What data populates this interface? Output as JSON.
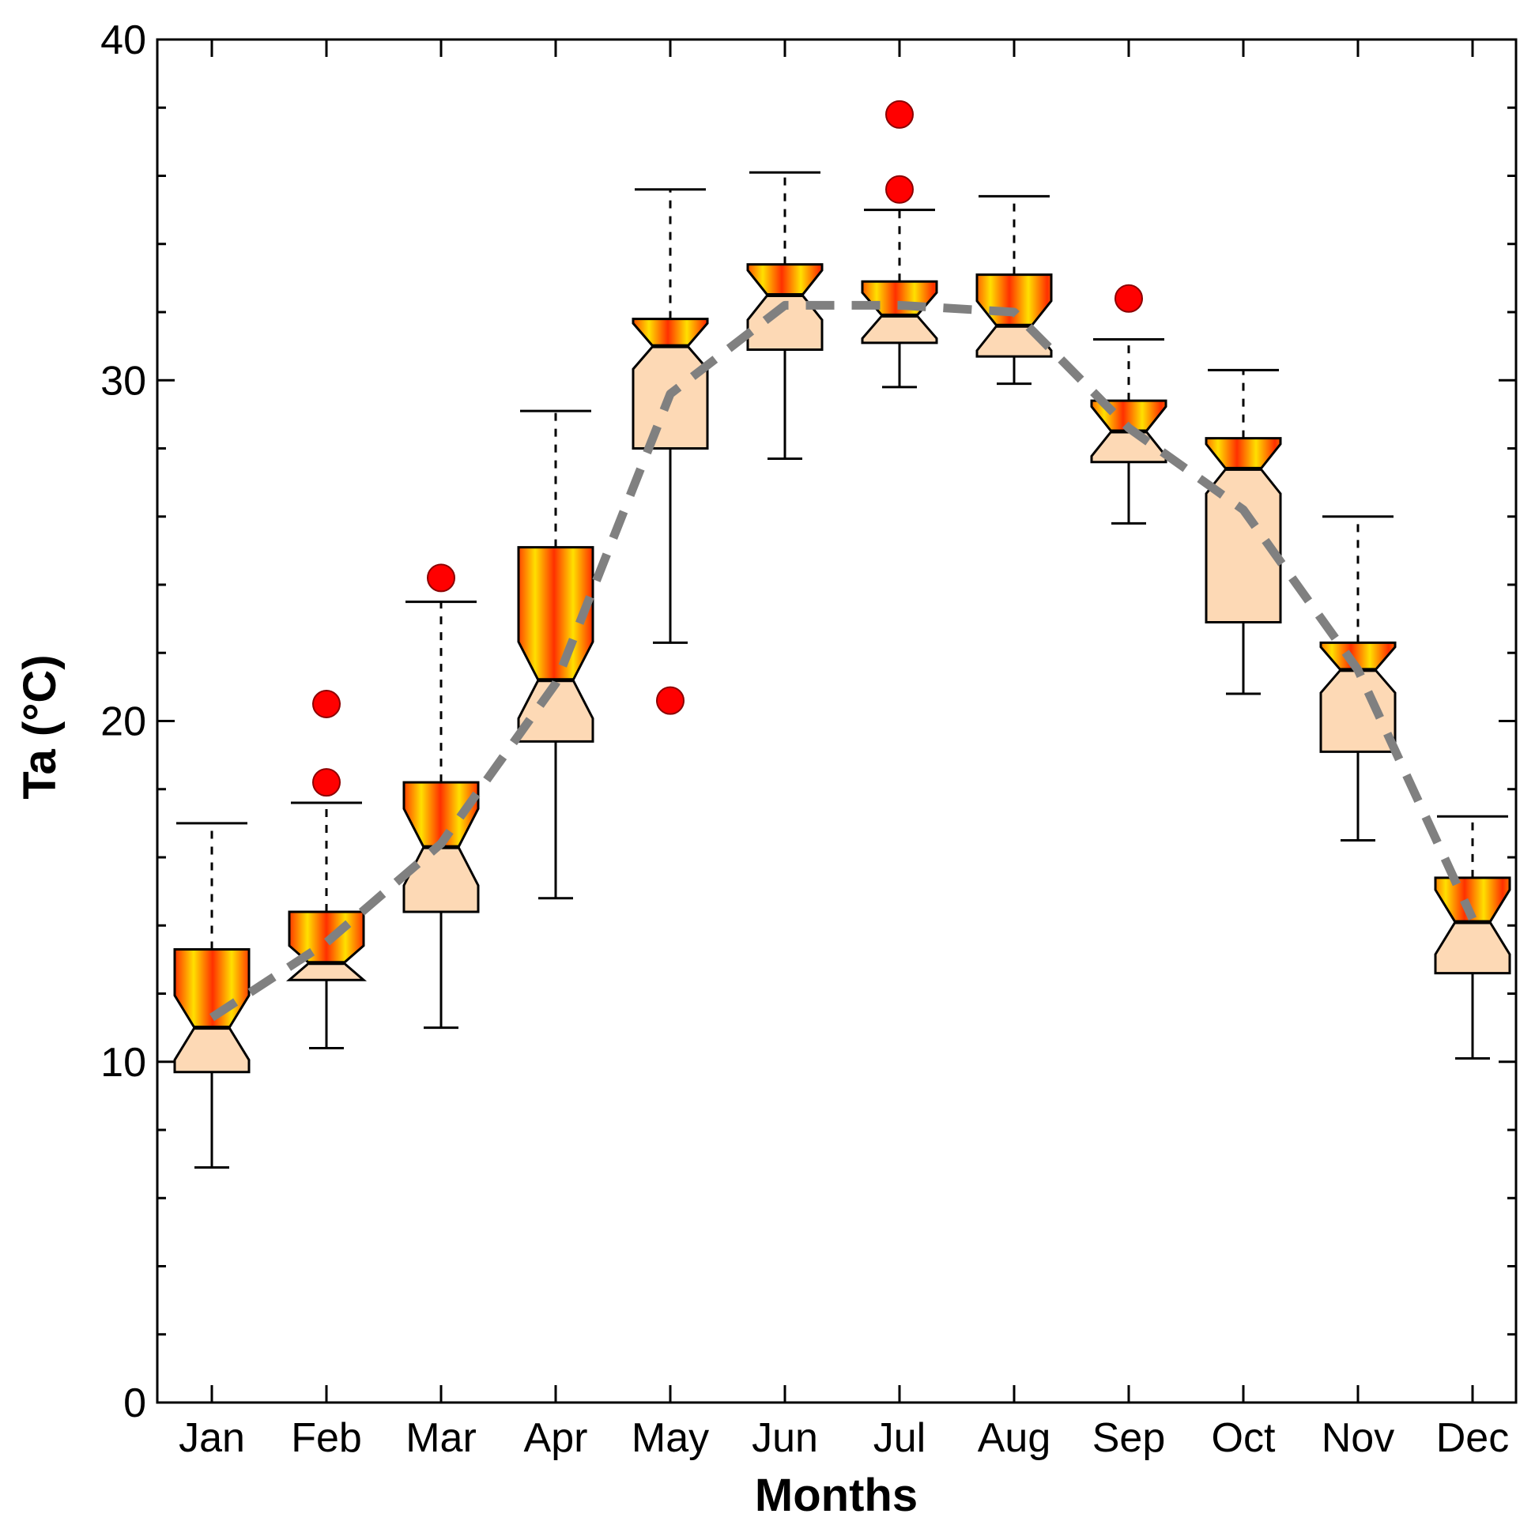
{
  "chart_data": {
    "type": "boxplot",
    "title": "",
    "xlabel": "Months",
    "ylabel": "Ta (°C)",
    "ylim": [
      0,
      40
    ],
    "yticks": [
      0,
      10,
      20,
      30,
      40
    ],
    "categories": [
      "Jan",
      "Feb",
      "Mar",
      "Apr",
      "May",
      "Jun",
      "Jul",
      "Aug",
      "Sep",
      "Oct",
      "Nov",
      "Dec"
    ],
    "boxes": [
      {
        "month": "Jan",
        "whisker_low": 6.9,
        "q1": 9.7,
        "median": 11.0,
        "q3": 13.3,
        "whisker_high": 17.0,
        "outliers": []
      },
      {
        "month": "Feb",
        "whisker_low": 10.4,
        "q1": 12.4,
        "median": 12.9,
        "q3": 14.4,
        "whisker_high": 17.6,
        "outliers": [
          20.5,
          18.2
        ]
      },
      {
        "month": "Mar",
        "whisker_low": 11.0,
        "q1": 14.4,
        "median": 16.3,
        "q3": 18.2,
        "whisker_high": 23.5,
        "outliers": [
          24.2
        ]
      },
      {
        "month": "Apr",
        "whisker_low": 14.8,
        "q1": 19.4,
        "median": 21.2,
        "q3": 25.1,
        "whisker_high": 29.1,
        "outliers": []
      },
      {
        "month": "May",
        "whisker_low": 22.3,
        "q1": 28.0,
        "median": 31.0,
        "q3": 31.8,
        "whisker_high": 35.6,
        "outliers": [
          20.6
        ]
      },
      {
        "month": "Jun",
        "whisker_low": 27.7,
        "q1": 30.9,
        "median": 32.5,
        "q3": 33.4,
        "whisker_high": 36.1,
        "outliers": []
      },
      {
        "month": "Jul",
        "whisker_low": 29.8,
        "q1": 31.1,
        "median": 31.9,
        "q3": 32.9,
        "whisker_high": 35.0,
        "outliers": [
          37.8,
          35.6
        ]
      },
      {
        "month": "Aug",
        "whisker_low": 29.9,
        "q1": 30.7,
        "median": 31.6,
        "q3": 33.1,
        "whisker_high": 35.4,
        "outliers": []
      },
      {
        "month": "Sep",
        "whisker_low": 25.8,
        "q1": 27.6,
        "median": 28.5,
        "q3": 29.4,
        "whisker_high": 31.2,
        "outliers": [
          32.4
        ]
      },
      {
        "month": "Oct",
        "whisker_low": 20.8,
        "q1": 22.9,
        "median": 27.4,
        "q3": 28.3,
        "whisker_high": 30.3,
        "outliers": []
      },
      {
        "month": "Nov",
        "whisker_low": 16.5,
        "q1": 19.1,
        "median": 21.5,
        "q3": 22.3,
        "whisker_high": 26.0,
        "outliers": []
      },
      {
        "month": "Dec",
        "whisker_low": 10.1,
        "q1": 12.6,
        "median": 14.1,
        "q3": 15.4,
        "whisker_high": 17.2,
        "outliers": []
      }
    ],
    "mean_line": {
      "name": "mean",
      "values": [
        11.3,
        13.5,
        16.4,
        21.1,
        29.6,
        32.2,
        32.2,
        32.0,
        28.6,
        26.2,
        21.5,
        14.2
      ]
    },
    "colors": {
      "box_lower_fill": "#fdd9b5",
      "box_upper_gradient": [
        "#ff6a00",
        "#ffe100",
        "#ff2a00"
      ],
      "outlier": "#ff0000",
      "mean_line": "#808080",
      "axis": "#000000"
    }
  }
}
